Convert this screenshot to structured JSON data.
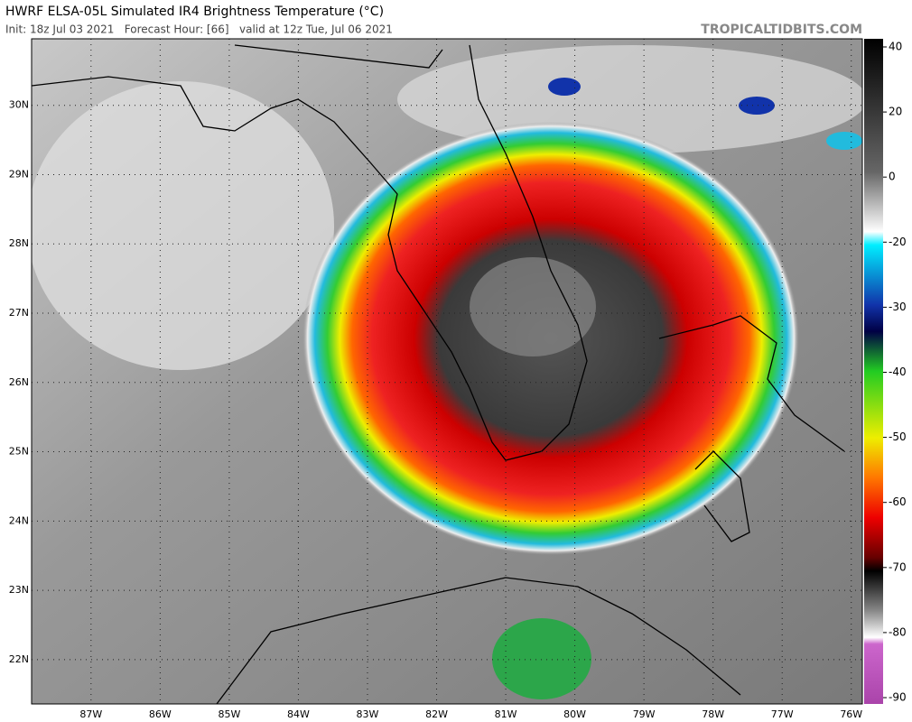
{
  "header": {
    "title": "HWRF ELSA-05L Simulated IR4 Brightness Temperature (°C)",
    "subtitle": "Init: 18z Jul 03 2021   Forecast Hour: [66]   valid at 12z Tue, Jul 06 2021",
    "source": "TROPICALTIDBITS.COM"
  },
  "map": {
    "xlim": [
      -87.86,
      -75.84
    ],
    "ylim": [
      21.36,
      30.96
    ],
    "xticks": [
      {
        "value": -87,
        "label": "87W"
      },
      {
        "value": -86,
        "label": "86W"
      },
      {
        "value": -85,
        "label": "85W"
      },
      {
        "value": -84,
        "label": "84W"
      },
      {
        "value": -83,
        "label": "83W"
      },
      {
        "value": -82,
        "label": "82W"
      },
      {
        "value": -81,
        "label": "81W"
      },
      {
        "value": -80,
        "label": "80W"
      },
      {
        "value": -79,
        "label": "79W"
      },
      {
        "value": -78,
        "label": "78W"
      },
      {
        "value": -77,
        "label": "77W"
      },
      {
        "value": -76,
        "label": "76W"
      }
    ],
    "yticks": [
      {
        "value": 22,
        "label": "22N"
      },
      {
        "value": 23,
        "label": "23N"
      },
      {
        "value": 24,
        "label": "24N"
      },
      {
        "value": 25,
        "label": "25N"
      },
      {
        "value": 26,
        "label": "26N"
      },
      {
        "value": 27,
        "label": "27N"
      },
      {
        "value": 28,
        "label": "28N"
      },
      {
        "value": 29,
        "label": "29N"
      },
      {
        "value": 30,
        "label": "30N"
      }
    ]
  },
  "colorbar": {
    "ticks": [
      40,
      20,
      0,
      -20,
      -30,
      -40,
      -50,
      -60,
      -70,
      -80,
      -90
    ]
  }
}
